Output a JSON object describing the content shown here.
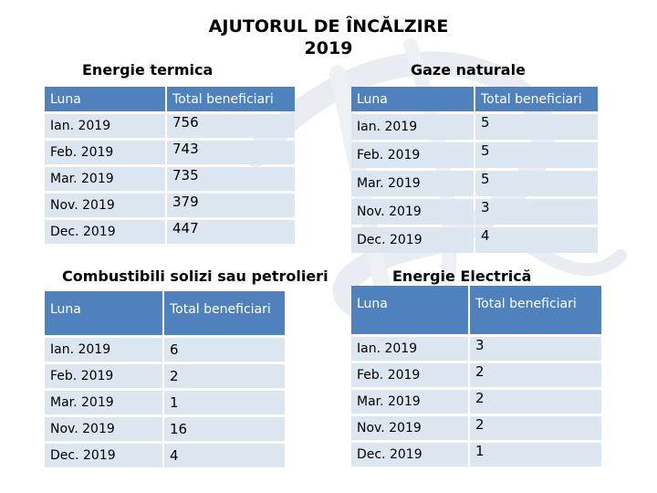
{
  "page": {
    "title_line1": "AJUTORUL DE ÎNCĂLZIRE",
    "title_line2": "2019"
  },
  "sections": {
    "energie_termica": {
      "heading": "Energie termica",
      "columns": [
        "Luna",
        "Total beneficiari"
      ],
      "rows": [
        {
          "luna": "Ian. 2019",
          "total": "756"
        },
        {
          "luna": "Feb. 2019",
          "total": "743"
        },
        {
          "luna": "Mar. 2019",
          "total": "735"
        },
        {
          "luna": "Nov. 2019",
          "total": "379"
        },
        {
          "luna": "Dec. 2019",
          "total": "447"
        }
      ]
    },
    "gaze_naturale": {
      "heading": "Gaze naturale",
      "columns": [
        "Luna",
        "Total beneficiari"
      ],
      "rows": [
        {
          "luna": "Ian. 2019",
          "total": "5"
        },
        {
          "luna": "Feb. 2019",
          "total": "5"
        },
        {
          "luna": "Mar. 2019",
          "total": "5"
        },
        {
          "luna": "Nov. 2019",
          "total": "3"
        },
        {
          "luna": "Dec. 2019",
          "total": "4"
        }
      ]
    },
    "combustibili": {
      "heading": "Combustibili solizi sau petrolieri",
      "columns": [
        "Luna",
        "Total beneficiari"
      ],
      "rows": [
        {
          "luna": "Ian. 2019",
          "total": "6"
        },
        {
          "luna": "Feb. 2019",
          "total": "2"
        },
        {
          "luna": "Mar. 2019",
          "total": "1"
        },
        {
          "luna": "Nov. 2019",
          "total": "16"
        },
        {
          "luna": "Dec. 2019",
          "total": "4"
        }
      ]
    },
    "energie_electrica": {
      "heading": "Energie Electrică",
      "columns": [
        "Luna",
        "Total beneficiari"
      ],
      "rows": [
        {
          "luna": "Ian. 2019",
          "total": "3"
        },
        {
          "luna": "Feb. 2019",
          "total": "2"
        },
        {
          "luna": "Mar. 2019",
          "total": "2"
        },
        {
          "luna": "Nov. 2019",
          "total": "2"
        },
        {
          "luna": "Dec. 2019",
          "total": "1"
        }
      ]
    }
  },
  "colors": {
    "header_fill": "#4f81bd",
    "cell_fill": "#dce6f1",
    "watermark": "#e9edf3"
  }
}
